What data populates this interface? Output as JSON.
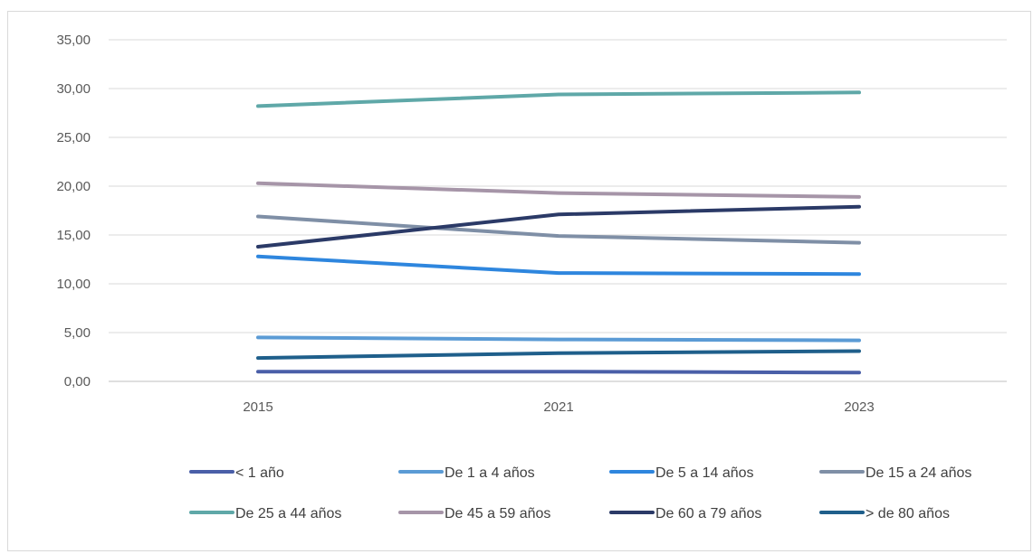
{
  "chart_data": {
    "type": "line",
    "title": "",
    "xlabel": "",
    "ylabel": "",
    "categories": [
      "2015",
      "2021",
      "2023"
    ],
    "ylim": [
      0,
      35
    ],
    "yticks": [
      0,
      5,
      10,
      15,
      20,
      25,
      30,
      35
    ],
    "ytick_labels": [
      "0,00",
      "5,00",
      "10,00",
      "15,00",
      "20,00",
      "25,00",
      "30,00",
      "35,00"
    ],
    "grid": true,
    "legend_position": "bottom",
    "series": [
      {
        "name": "< 1 año",
        "color": "#4a5fa8",
        "values": [
          1.0,
          1.0,
          0.9
        ]
      },
      {
        "name": "De 1 a 4 años",
        "color": "#5b9bd5",
        "values": [
          4.5,
          4.3,
          4.2
        ]
      },
      {
        "name": "De 5 a 14 años",
        "color": "#2e86de",
        "values": [
          12.8,
          11.1,
          11.0
        ]
      },
      {
        "name": "De 15 a 24 años",
        "color": "#7f8fa6",
        "values": [
          16.9,
          14.9,
          14.2
        ]
      },
      {
        "name": "De 25 a 44 años",
        "color": "#5fa8a8",
        "values": [
          28.2,
          29.4,
          29.6
        ]
      },
      {
        "name": "De 45 a 59 años",
        "color": "#a695a8",
        "values": [
          20.3,
          19.3,
          18.9
        ]
      },
      {
        "name": "De 60 a 79 años",
        "color": "#2b3a67",
        "values": [
          13.8,
          17.1,
          17.9
        ]
      },
      {
        "name": "> de 80 años",
        "color": "#1f5f8b",
        "values": [
          2.4,
          2.9,
          3.1
        ]
      }
    ]
  }
}
